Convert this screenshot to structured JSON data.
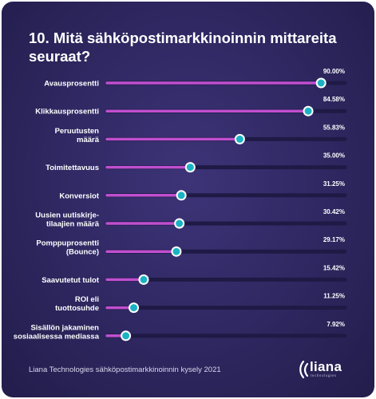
{
  "title": "10. Mitä sähköpostimarkkinoinnin mittareita seuraat?",
  "footer": {
    "source": "Liana Technologies sähköpostimarkkinoinnin kysely 2021",
    "logo_word": "liana",
    "logo_sub": "technologies"
  },
  "colors": {
    "bar": "#c04fd0",
    "track": "#1f1a45",
    "marker_fill": "#1bb3c4",
    "marker_ring": "#ffffff",
    "text": "#ffffff"
  },
  "chart_data": {
    "type": "bar",
    "orientation": "horizontal",
    "categories": [
      [
        "Avausprosentti"
      ],
      [
        "Klikkausprosentti"
      ],
      [
        "Peruutusten",
        "määrä"
      ],
      [
        "Toimitettavuus"
      ],
      [
        "Konversiot"
      ],
      [
        "Uusien uutiskirje-",
        "tilaajien määrä"
      ],
      [
        "Pomppuprosentti",
        "(Bounce)"
      ],
      [
        "Saavutetut tulot"
      ],
      [
        "ROI eli",
        "tuottosuhde"
      ],
      [
        "Sisällön jakaminen",
        "sosiaalisessa mediassa"
      ]
    ],
    "values": [
      90.0,
      84.58,
      55.83,
      35.0,
      31.25,
      30.42,
      29.17,
      15.42,
      11.25,
      7.92
    ],
    "value_labels": [
      "90.00%",
      "84.58%",
      "55.83%",
      "35.00%",
      "31.25%",
      "30.42%",
      "29.17%",
      "15.42%",
      "11.25%",
      "7.92%"
    ],
    "xlim": [
      0,
      100
    ],
    "grid": false,
    "legend": "none"
  }
}
